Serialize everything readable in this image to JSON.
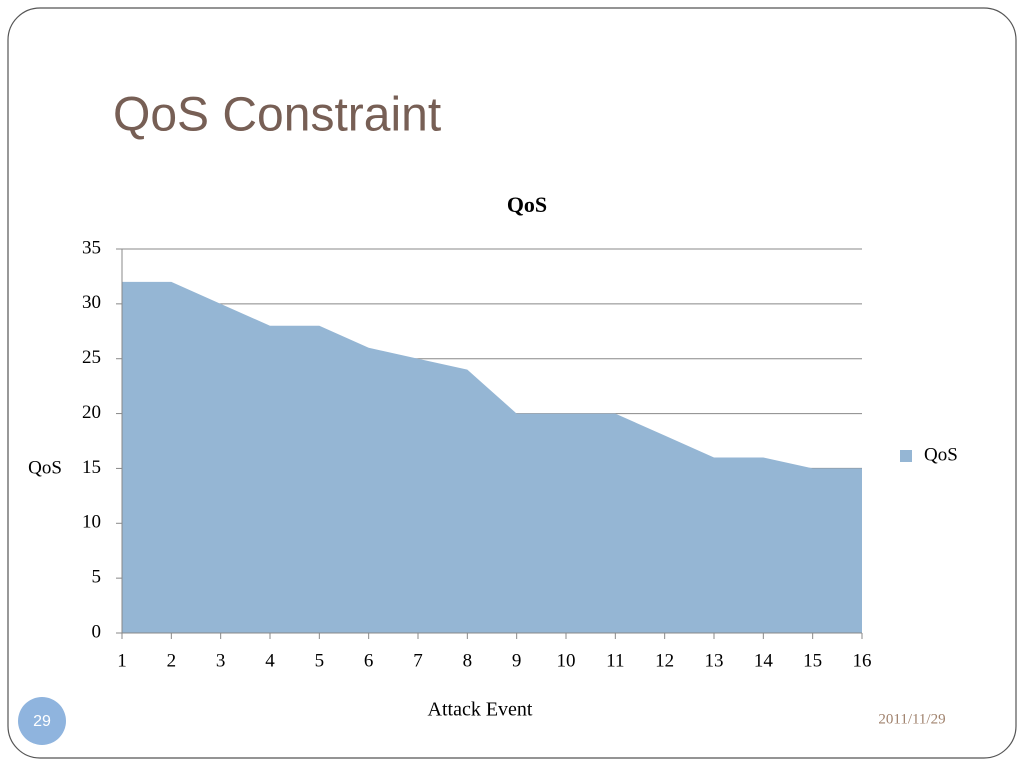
{
  "slide": {
    "title": "QoS Constraint",
    "number": "29",
    "date": "2011/11/29"
  },
  "chart_data": {
    "type": "area",
    "title": "QoS",
    "x_label": "Attack Event",
    "y_label": "QoS",
    "x": [
      1,
      2,
      3,
      4,
      5,
      6,
      7,
      8,
      9,
      10,
      11,
      12,
      13,
      14,
      15,
      16
    ],
    "series": [
      {
        "name": "QoS",
        "color": "#95b6d4",
        "values": [
          32,
          32,
          30,
          28,
          28,
          26,
          25,
          24,
          20,
          20,
          20,
          18,
          16,
          16,
          15,
          15
        ]
      }
    ],
    "xlim": [
      1,
      16
    ],
    "xticks": [
      1,
      2,
      3,
      4,
      5,
      6,
      7,
      8,
      9,
      10,
      11,
      12,
      13,
      14,
      15,
      16
    ],
    "ylim": [
      0,
      35
    ],
    "yticks": [
      0,
      5,
      10,
      15,
      20,
      25,
      30,
      35
    ],
    "grid": true,
    "legend": "right"
  }
}
